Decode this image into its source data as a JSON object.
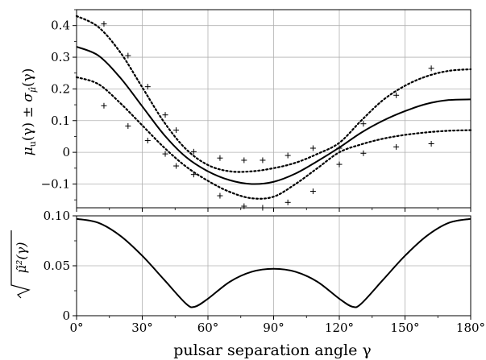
{
  "chart_data": [
    {
      "type": "line",
      "panel": "top",
      "ylabel": "μu(γ) ± σμ̂(γ)",
      "ylabel_parts": {
        "mu": "μ",
        "mu_sub": "u",
        "arg1": "(γ) ± ",
        "sigma": "σ",
        "sigma_sub": "μ̂",
        "arg2": "(γ)"
      },
      "xlim": [
        0,
        180
      ],
      "ylim": [
        -0.175,
        0.45
      ],
      "grid": true,
      "yticks": [
        -0.1,
        0,
        0.1,
        0.2,
        0.3,
        0.4
      ],
      "ytick_labels": [
        "−0.1",
        "0",
        "0.1",
        "0.2",
        "0.3",
        "0.4"
      ],
      "series": [
        {
          "style": "solid",
          "x": [
            0,
            10,
            20,
            30,
            40,
            50,
            60,
            70,
            80,
            90,
            100,
            110,
            120,
            130,
            140,
            150,
            160,
            170,
            180
          ],
          "y": [
            0.333,
            0.305,
            0.235,
            0.145,
            0.055,
            -0.015,
            -0.06,
            -0.088,
            -0.1,
            -0.093,
            -0.067,
            -0.028,
            0.015,
            0.062,
            0.1,
            0.13,
            0.153,
            0.165,
            0.167
          ]
        },
        {
          "style": "dotted",
          "x": [
            0,
            10,
            20,
            30,
            40,
            50,
            60,
            70,
            80,
            90,
            100,
            110,
            120,
            130,
            140,
            150,
            160,
            170,
            180
          ],
          "y": [
            0.43,
            0.395,
            0.315,
            0.205,
            0.095,
            0.01,
            -0.04,
            -0.06,
            -0.06,
            -0.05,
            -0.033,
            -0.005,
            0.03,
            0.1,
            0.165,
            0.21,
            0.24,
            0.257,
            0.262
          ]
        },
        {
          "style": "dotted",
          "x": [
            0,
            10,
            20,
            30,
            40,
            50,
            60,
            70,
            80,
            90,
            100,
            110,
            120,
            130,
            140,
            150,
            160,
            170,
            180
          ],
          "y": [
            0.237,
            0.215,
            0.155,
            0.085,
            0.015,
            -0.045,
            -0.09,
            -0.125,
            -0.145,
            -0.14,
            -0.1,
            -0.05,
            0.0,
            0.025,
            0.043,
            0.055,
            0.063,
            0.068,
            0.07
          ]
        }
      ],
      "points": {
        "marker": "+",
        "x": [
          12.5,
          12.5,
          23.5,
          23.5,
          32.5,
          32.5,
          40.5,
          40.5,
          45.5,
          45.5,
          53.5,
          53.5,
          65.5,
          65.5,
          76.5,
          76.5,
          85,
          85,
          96.5,
          96.5,
          108,
          108,
          120,
          120,
          131,
          131,
          146,
          146,
          162,
          162
        ],
        "y": [
          0.405,
          0.147,
          0.305,
          0.083,
          0.207,
          0.037,
          0.118,
          -0.005,
          0.07,
          -0.043,
          0.002,
          -0.07,
          -0.018,
          -0.137,
          -0.025,
          -0.17,
          -0.025,
          -0.175,
          -0.01,
          -0.158,
          0.013,
          -0.123,
          0.013,
          -0.038,
          0.09,
          -0.003,
          0.18,
          0.017,
          0.265,
          0.027
        ]
      }
    },
    {
      "type": "line",
      "panel": "bottom",
      "ylabel": "√(μ̃²(γ))",
      "ylabel_parts": {
        "inner": "μ̃²(γ)"
      },
      "xlabel": "pulsar separation angle γ",
      "xlim": [
        0,
        180
      ],
      "ylim": [
        0,
        0.1
      ],
      "grid": true,
      "yticks": [
        0,
        0.05,
        0.1
      ],
      "ytick_labels": [
        "0",
        "0.05",
        "0.10"
      ],
      "xticks": [
        0,
        30,
        60,
        90,
        120,
        150,
        180
      ],
      "xtick_labels": [
        "0°",
        "30°",
        "60°",
        "90°",
        "120°",
        "150°",
        "180°"
      ],
      "series": [
        {
          "style": "solid",
          "x": [
            0,
            10,
            20,
            30,
            40,
            50,
            54,
            60,
            70,
            80,
            90,
            100,
            110,
            120,
            126,
            130,
            140,
            150,
            160,
            170,
            180
          ],
          "y": [
            0.097,
            0.093,
            0.08,
            0.06,
            0.036,
            0.012,
            0.009,
            0.017,
            0.034,
            0.044,
            0.047,
            0.044,
            0.034,
            0.017,
            0.009,
            0.012,
            0.036,
            0.06,
            0.08,
            0.093,
            0.097
          ]
        }
      ]
    }
  ]
}
